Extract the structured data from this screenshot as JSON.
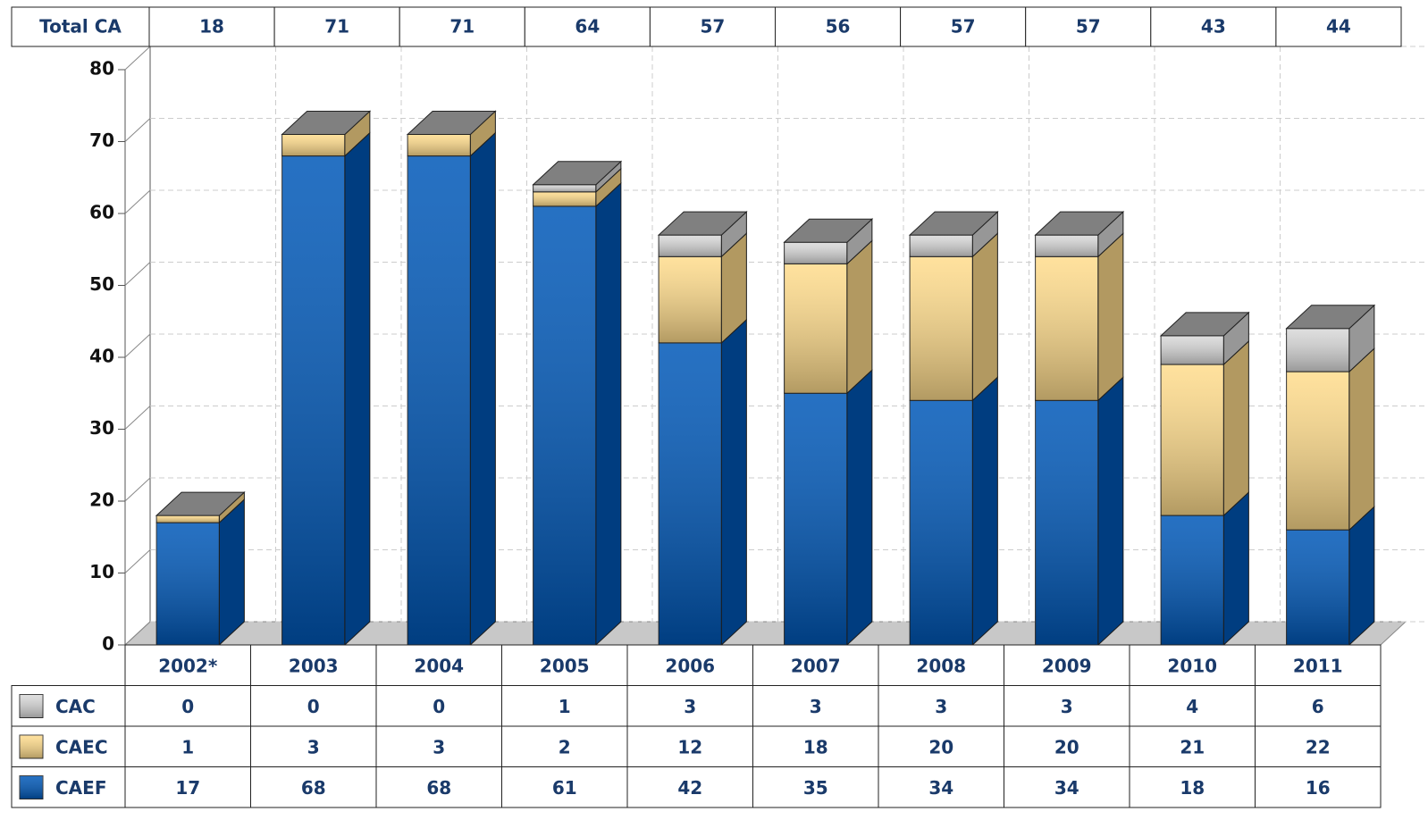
{
  "chart_data": {
    "type": "bar3d_stacked",
    "total_label": "Total CA",
    "totals": [
      18,
      71,
      71,
      64,
      57,
      56,
      57,
      57,
      43,
      44
    ],
    "categories": [
      "2002*",
      "2003",
      "2004",
      "2005",
      "2006",
      "2007",
      "2008",
      "2009",
      "2010",
      "2011"
    ],
    "series": [
      {
        "name": "CAC",
        "color": "#d9d9d9",
        "values": [
          0,
          0,
          0,
          1,
          3,
          3,
          3,
          3,
          4,
          6
        ]
      },
      {
        "name": "CAEC",
        "color": "#ffdc8c",
        "values": [
          1,
          3,
          3,
          2,
          12,
          18,
          20,
          20,
          21,
          22
        ]
      },
      {
        "name": "CAEF",
        "color": "#0058b8",
        "values": [
          17,
          68,
          68,
          61,
          42,
          35,
          34,
          34,
          18,
          16
        ]
      }
    ],
    "ylim": [
      0,
      80
    ],
    "yticks": [
      0,
      10,
      20,
      30,
      40,
      50,
      60,
      70,
      80
    ],
    "grid": true
  }
}
